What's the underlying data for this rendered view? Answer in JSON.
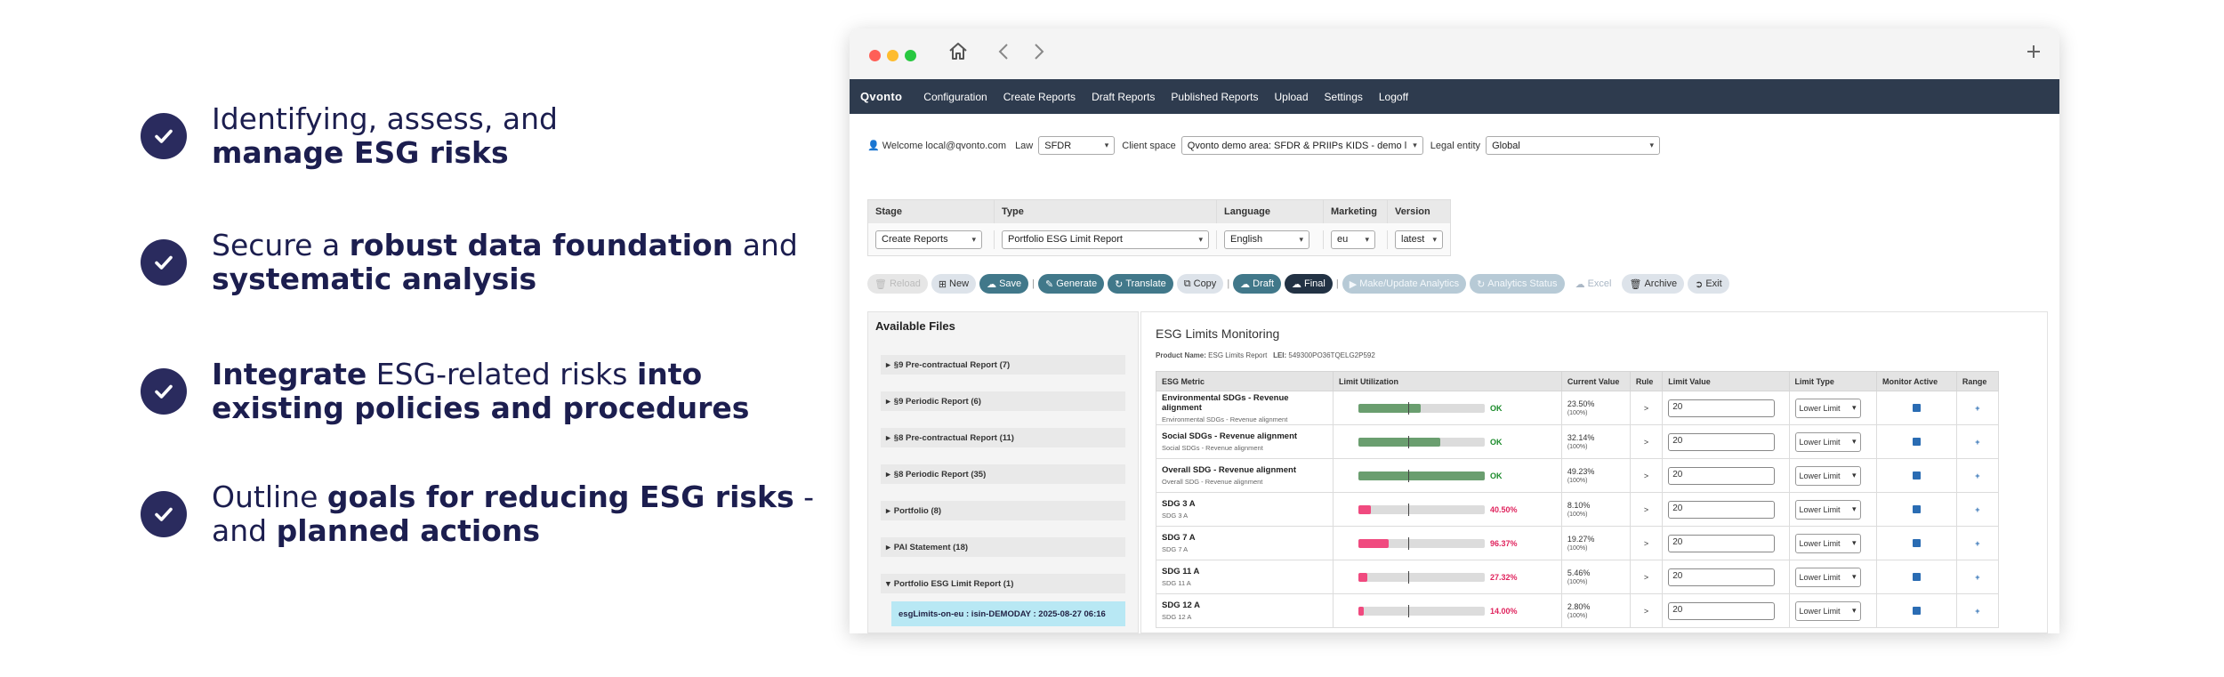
{
  "features": [
    {
      "lines": [
        [
          {
            "t": "Identifying, assess, and",
            "b": false
          }
        ],
        [
          {
            "t": "manage ESG risks",
            "b": true
          }
        ]
      ]
    },
    {
      "lines": [
        [
          {
            "t": "Secure a ",
            "b": false
          },
          {
            "t": "robust data foundation",
            "b": true
          },
          {
            "t": " and",
            "b": false
          }
        ],
        [
          {
            "t": "systematic analysis",
            "b": true
          }
        ]
      ]
    },
    {
      "lines": [
        [
          {
            "t": "Integrate",
            "b": true
          },
          {
            "t": " ESG-related risks ",
            "b": false
          },
          {
            "t": "into",
            "b": true
          }
        ],
        [
          {
            "t": "existing policies and procedures",
            "b": true
          }
        ]
      ]
    },
    {
      "lines": [
        [
          {
            "t": "Outline ",
            "b": false
          },
          {
            "t": "goals for reducing ESG risks",
            "b": true
          },
          {
            "t": " -",
            "b": false
          }
        ],
        [
          {
            "t": "and ",
            "b": false
          },
          {
            "t": "planned actions",
            "b": true
          }
        ]
      ]
    }
  ],
  "browser": {
    "home_icon": "home-icon",
    "back_icon": "chevron-left-icon",
    "forward_icon": "chevron-right-icon",
    "new_tab_icon": "plus-icon"
  },
  "navbar": {
    "brand": "Qvonto",
    "items": [
      "Configuration",
      "Create Reports",
      "Draft Reports",
      "Published Reports",
      "Upload",
      "Settings",
      "Logoff"
    ]
  },
  "context": {
    "welcome": "Welcome local@qvonto.com",
    "law_label": "Law",
    "law_value": "SFDR",
    "client_label": "Client space",
    "client_value": "Qvonto demo area: SFDR & PRIIPs KIDS - demo l",
    "entity_label": "Legal entity",
    "entity_value": "Global"
  },
  "report_config": {
    "headers": [
      "Stage",
      "Type",
      "Language",
      "Marketing",
      "Version"
    ],
    "values": [
      "Create Reports",
      "Portfolio ESG Limit Report",
      "English",
      "eu",
      "latest"
    ]
  },
  "toolbar": {
    "reload": "Reload",
    "new": "New",
    "save": "Save",
    "generate": "Generate",
    "translate": "Translate",
    "copy": "Copy",
    "draft": "Draft",
    "final": "Final",
    "make_update": "Make/Update Analytics",
    "analytics_status": "Analytics Status",
    "excel": "Excel",
    "archive": "Archive",
    "exit": "Exit"
  },
  "files": {
    "title": "Available Files",
    "items": [
      "§9 Pre-contractual Report (7)",
      "§9 Periodic Report (6)",
      "§8 Pre-contractual Report (11)",
      "§8 Periodic Report (35)",
      "Portfolio (8)",
      "PAI Statement (18)",
      "Portfolio ESG Limit Report (1)"
    ],
    "open_item": "esgLimits-on-eu : isin-DEMODAY : 2025-08-27 06:16"
  },
  "monitor": {
    "title": "ESG Limits Monitoring",
    "product_label": "Product Name:",
    "product_value": "ESG Limits Report",
    "lei_label": "LEI:",
    "lei_value": "549300PO36TQELG2P592",
    "columns": [
      "ESG Metric",
      "Limit Utilization",
      "Current Value",
      "Rule",
      "Limit Value",
      "Limit Type",
      "Monitor Active",
      "Range"
    ],
    "rows": [
      {
        "name": "Environmental SDGs - Revenue alignment",
        "sub": "Environmental SDGs - Revenue alignment",
        "util": 0.49,
        "status": "OK",
        "ok": true,
        "current": "23.50%",
        "current_sub": "(100%)",
        "rule": ">",
        "limit": "20",
        "type": "Lower Limit"
      },
      {
        "name": "Social SDGs - Revenue alignment",
        "sub": "Social SDGs - Revenue alignment",
        "util": 0.65,
        "status": "OK",
        "ok": true,
        "current": "32.14%",
        "current_sub": "(100%)",
        "rule": ">",
        "limit": "20",
        "type": "Lower Limit"
      },
      {
        "name": "Overall SDG - Revenue alignment",
        "sub": "Overall SDG - Revenue alignment",
        "util": 1.0,
        "status": "OK",
        "ok": true,
        "current": "49.23%",
        "current_sub": "(100%)",
        "rule": ">",
        "limit": "20",
        "type": "Lower Limit"
      },
      {
        "name": "SDG 3 A",
        "sub": "SDG 3 A",
        "util": 0.1,
        "status": "40.50%",
        "ok": false,
        "current": "8.10%",
        "current_sub": "(100%)",
        "rule": ">",
        "limit": "20",
        "type": "Lower Limit"
      },
      {
        "name": "SDG 7 A",
        "sub": "SDG 7 A",
        "util": 0.24,
        "status": "96.37%",
        "ok": false,
        "current": "19.27%",
        "current_sub": "(100%)",
        "rule": ">",
        "limit": "20",
        "type": "Lower Limit"
      },
      {
        "name": "SDG 11 A",
        "sub": "SDG 11 A",
        "util": 0.07,
        "status": "27.32%",
        "ok": false,
        "current": "5.46%",
        "current_sub": "(100%)",
        "rule": ">",
        "limit": "20",
        "type": "Lower Limit"
      },
      {
        "name": "SDG 12 A",
        "sub": "SDG 12 A",
        "util": 0.04,
        "status": "14.00%",
        "ok": false,
        "current": "2.80%",
        "current_sub": "(100%)",
        "rule": ">",
        "limit": "20",
        "type": "Lower Limit"
      }
    ]
  },
  "colors": {
    "navy": "#2a2b5e",
    "nav_bg": "#2e3b4e",
    "ok_green": "#1a8a2a",
    "bar_green": "#6a9e6f",
    "warn_red": "#e0245e",
    "bar_pink": "#f04a7f"
  }
}
